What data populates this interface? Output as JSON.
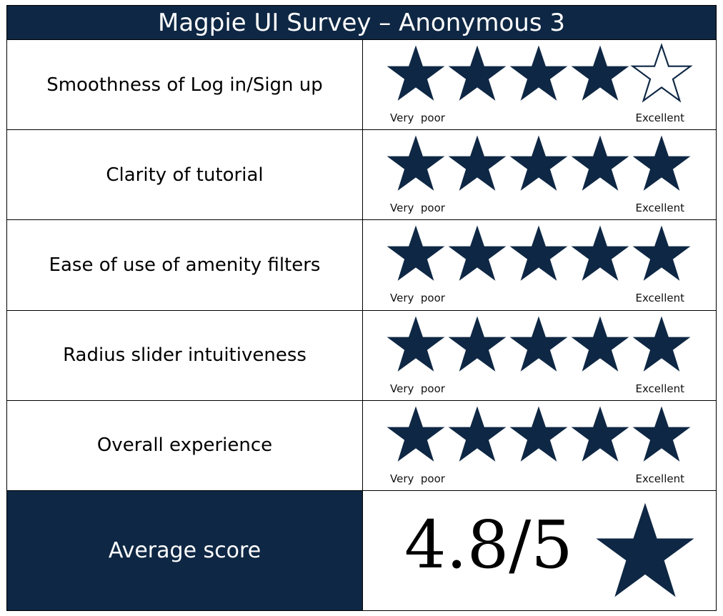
{
  "title": "Magpie UI Survey – Anonymous 3",
  "colors": {
    "navy": "#0e2744",
    "border": "#000000",
    "background": "#ffffff"
  },
  "scale": {
    "low_label": "Very  poor",
    "high_label": "Excellent",
    "max": 5
  },
  "questions": [
    {
      "label": "Smoothness of Log in/Sign up",
      "rating": 4
    },
    {
      "label": "Clarity of tutorial",
      "rating": 5
    },
    {
      "label": "Ease of use of amenity filters",
      "rating": 5
    },
    {
      "label": "Radius slider intuitiveness",
      "rating": 5
    },
    {
      "label": "Overall experience",
      "rating": 5
    }
  ],
  "average": {
    "label": "Average score",
    "value": "4.8/5",
    "icon": "star-icon"
  }
}
